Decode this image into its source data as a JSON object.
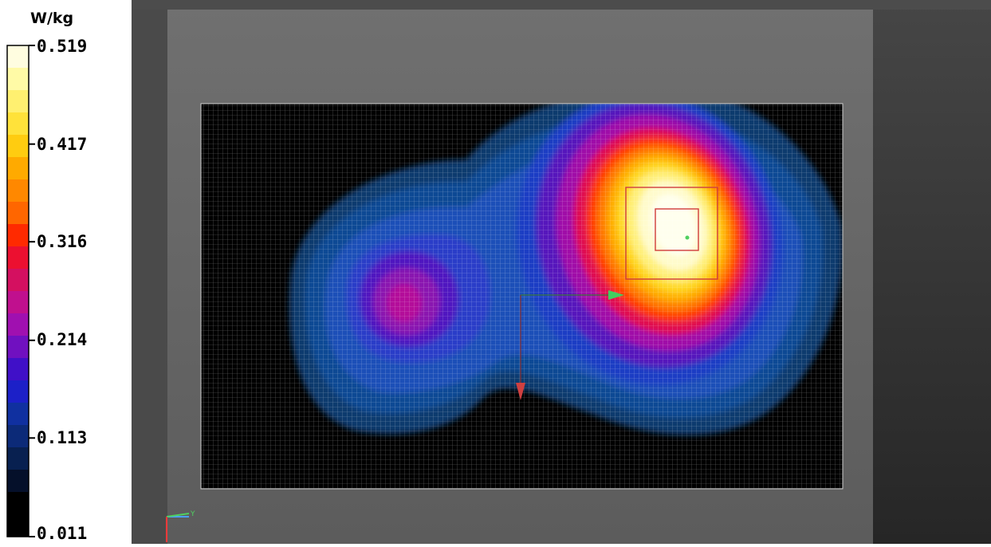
{
  "legend": {
    "unit": "W/kg",
    "ticks": [
      "0.519",
      "0.417",
      "0.316",
      "0.214",
      "0.113",
      "0.011"
    ]
  },
  "axis_triad": {
    "y_label": "Y"
  },
  "chart_data": {
    "type": "heatmap",
    "colorbar": {
      "unit": "W/kg",
      "min": 0.011,
      "max": 0.519,
      "tick_values": [
        0.519,
        0.417,
        0.316,
        0.214,
        0.113,
        0.011
      ],
      "colors": [
        "#fffde0",
        "#fffaa6",
        "#fff070",
        "#ffe23a",
        "#ffcc10",
        "#ffaa00",
        "#ff8800",
        "#ff6600",
        "#ff2a00",
        "#ec1030",
        "#d41060",
        "#c0108e",
        "#a010b0",
        "#7010c0",
        "#4010c8",
        "#1c20c8",
        "#1030a0",
        "#0c2a78",
        "#082050",
        "#05102a",
        "#000000",
        "#000000"
      ]
    }
  }
}
